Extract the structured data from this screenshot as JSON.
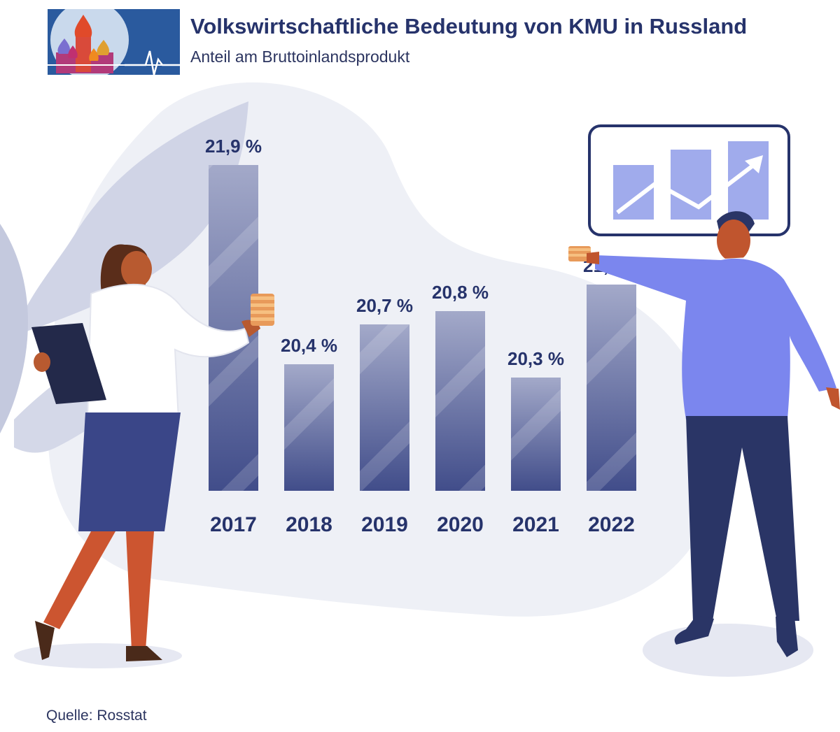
{
  "header": {
    "title": "Volkswirtschaftliche Bedeutung von KMU in Russland",
    "subtitle": "Anteil am Bruttoinlandsprodukt"
  },
  "footer": {
    "source": "Quelle: Rosstat"
  },
  "chart_data": {
    "type": "bar",
    "title": "Volkswirtschaftliche Bedeutung von KMU in Russland",
    "subtitle": "Anteil am Bruttoinlandsprodukt",
    "categories": [
      "2017",
      "2018",
      "2019",
      "2020",
      "2021",
      "2022"
    ],
    "values": [
      21.9,
      20.4,
      20.7,
      20.8,
      20.3,
      21.0
    ],
    "value_labels": [
      "21,9 %",
      "20,4 %",
      "20,7 %",
      "20,8 %",
      "20,3 %",
      "21,0 %"
    ],
    "unit": "%",
    "bar_color": "#4a5796",
    "grid": false,
    "legend": "none"
  }
}
